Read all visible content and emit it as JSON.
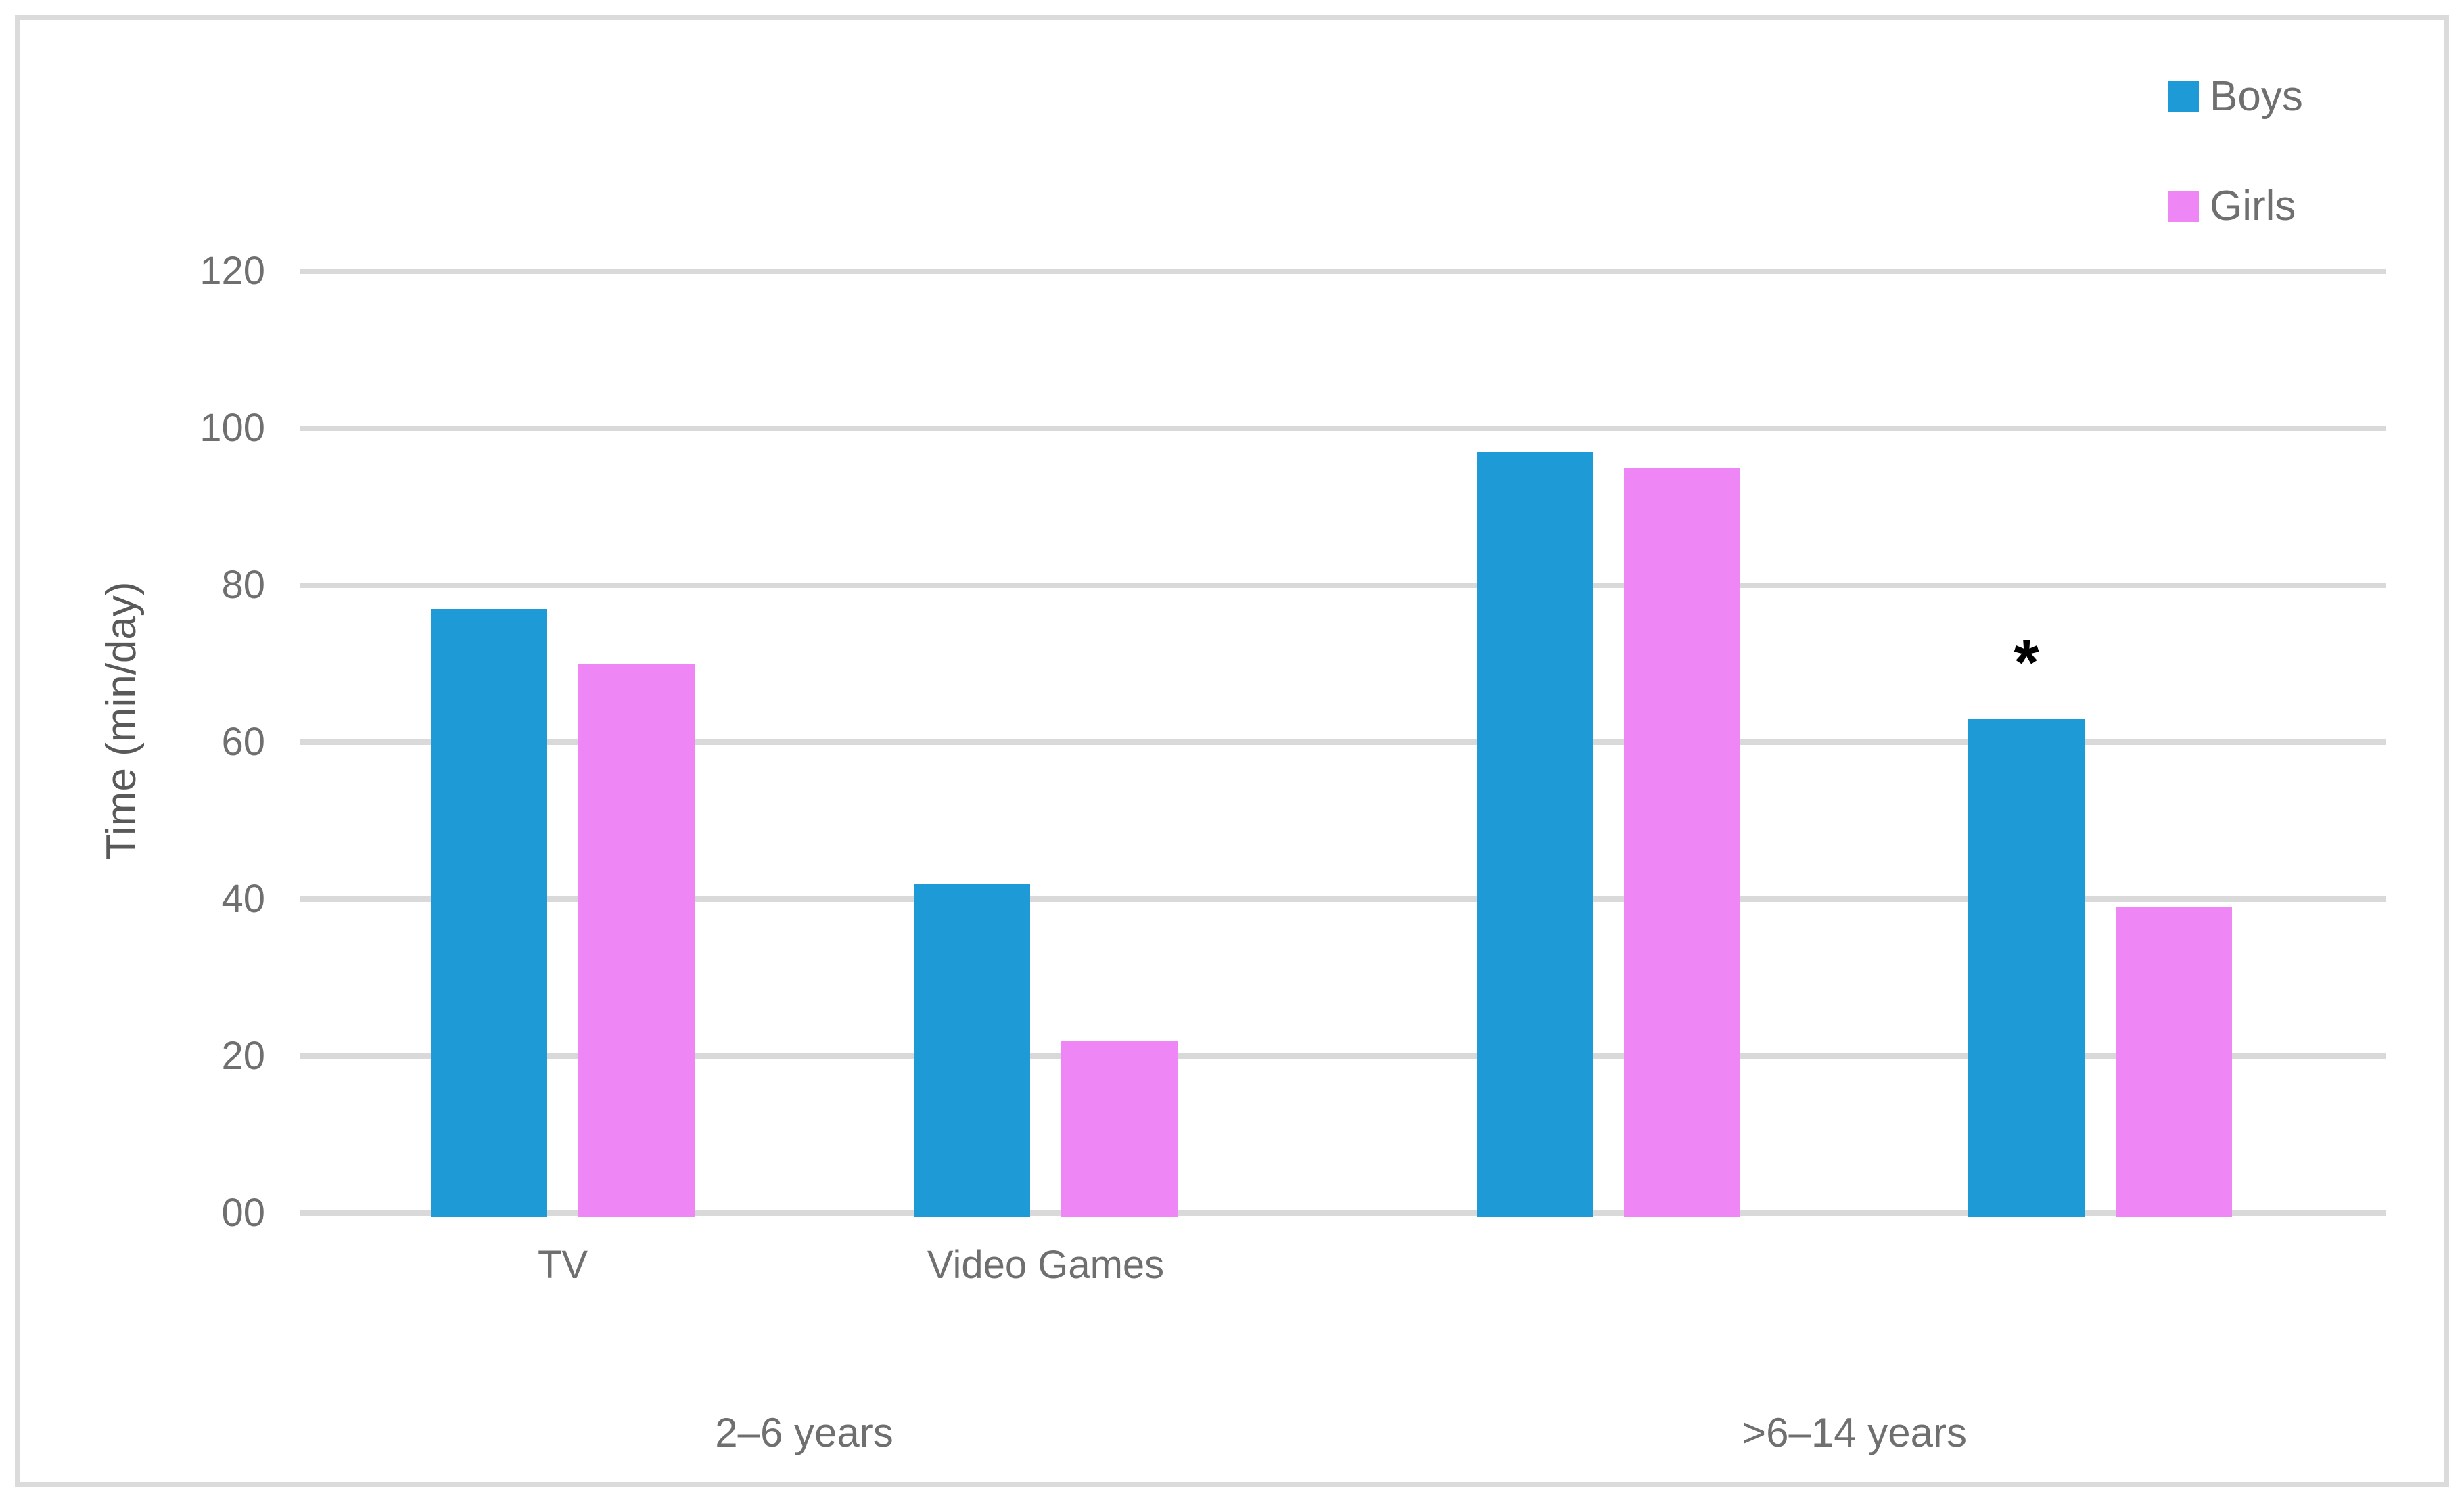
{
  "chart_data": {
    "type": "bar",
    "title": "",
    "y_axis": {
      "title": "Time (min/day)",
      "tick_labels": [
        "00",
        "20",
        "40",
        "60",
        "80",
        "100",
        "120"
      ],
      "tick_values": [
        0,
        20,
        40,
        60,
        80,
        100,
        120
      ],
      "ylim": [
        0,
        120
      ],
      "grid": true
    },
    "x_axis": {
      "category_labels": [
        "TV",
        "Video Games",
        "",
        ""
      ],
      "group_labels": [
        {
          "text": "2–6 years",
          "span": [
            0,
            1
          ]
        },
        {
          "text": ">6–14 years",
          "span": [
            2,
            3
          ]
        }
      ]
    },
    "series": [
      {
        "name": "Boys",
        "color": "#1E9AD6",
        "values": [
          77,
          42,
          97,
          63
        ]
      },
      {
        "name": "Girls",
        "color": "#EE86F5",
        "values": [
          70,
          22,
          95,
          39
        ]
      }
    ],
    "annotations": [
      {
        "text": "*",
        "series": "Boys",
        "category_index": 3,
        "position": "above-bar"
      }
    ],
    "legend": {
      "position": "top-right",
      "entries": [
        "Boys",
        "Girls"
      ]
    },
    "colors": {
      "gridline": "#D9D9D9",
      "baseline": "#D9D9D9",
      "frame_border": "#DBDBDB",
      "tick_text": "#6F6F6F",
      "axis_title_text": "#595959",
      "legend_text": "#6F6F6F",
      "annotation_text": "#000000",
      "background": "#FFFFFF"
    }
  }
}
